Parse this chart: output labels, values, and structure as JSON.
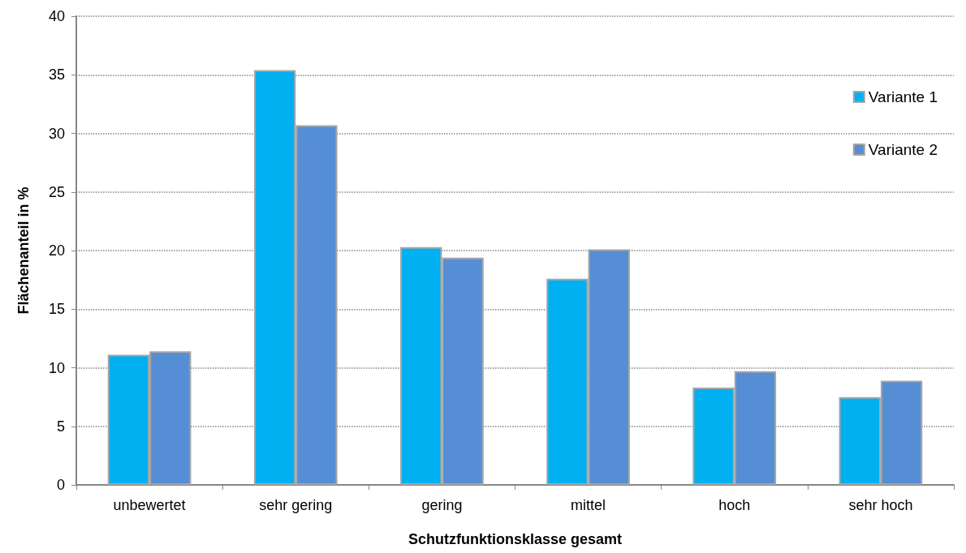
{
  "chart_data": {
    "type": "bar",
    "xlabel": "Schutzfunktionsklasse gesamt",
    "ylabel": "Flächenanteil in %",
    "categories": [
      "unbewertet",
      "sehr gering",
      "gering",
      "mittel",
      "hoch",
      "sehr hoch"
    ],
    "series": [
      {
        "name": "Variante 1",
        "color": "#00b0f0",
        "values": [
          11.1,
          35.4,
          20.3,
          17.6,
          8.3,
          7.5
        ]
      },
      {
        "name": "Variante 2",
        "color": "#558ed5",
        "values": [
          11.4,
          30.7,
          19.4,
          20.1,
          9.7,
          8.9
        ]
      }
    ],
    "ylim": [
      0,
      40
    ],
    "yticks": [
      0,
      5,
      10,
      15,
      20,
      25,
      30,
      35,
      40
    ],
    "grid": "y",
    "legend": "top right"
  }
}
